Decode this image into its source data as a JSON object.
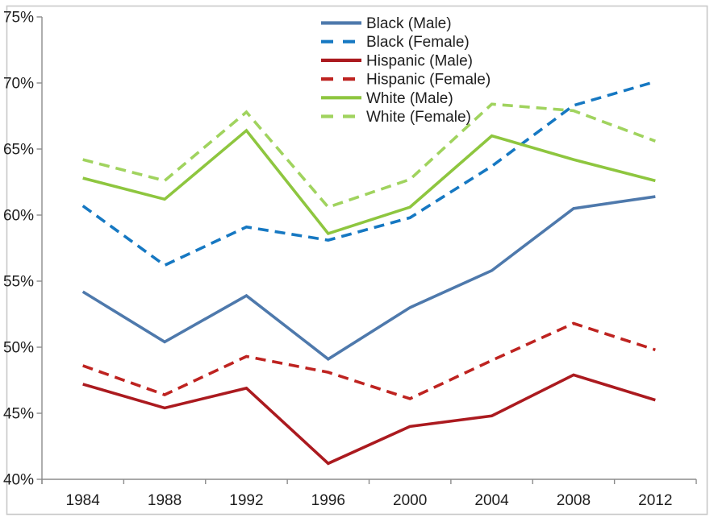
{
  "chart_data": {
    "type": "line",
    "title": "",
    "xlabel": "",
    "ylabel": "",
    "x": [
      "1984",
      "1988",
      "1992",
      "1996",
      "2000",
      "2004",
      "2008",
      "2012"
    ],
    "series": [
      {
        "name": "Black (Male)",
        "color": "#4E79AC",
        "dash": "solid",
        "values": [
          54.2,
          50.4,
          53.9,
          49.1,
          53.0,
          55.8,
          60.5,
          61.4
        ]
      },
      {
        "name": "Black (Female)",
        "color": "#1678C2",
        "dash": "dashed",
        "values": [
          60.7,
          56.2,
          59.1,
          58.1,
          59.8,
          63.7,
          68.3,
          70.1
        ]
      },
      {
        "name": "Hispanic (Male)",
        "color": "#AB1A1F",
        "dash": "solid",
        "values": [
          47.2,
          45.4,
          46.9,
          41.2,
          44.0,
          44.8,
          47.9,
          46.0
        ]
      },
      {
        "name": "Hispanic (Female)",
        "color": "#BE2320",
        "dash": "dashed",
        "values": [
          48.6,
          46.4,
          49.3,
          48.1,
          46.1,
          49.0,
          51.8,
          49.8
        ]
      },
      {
        "name": "White (Male)",
        "color": "#8EC63F",
        "dash": "solid",
        "values": [
          62.8,
          61.2,
          66.4,
          58.6,
          60.6,
          66.0,
          64.2,
          62.6
        ]
      },
      {
        "name": "White (Female)",
        "color": "#A0D35E",
        "dash": "dashed",
        "values": [
          64.2,
          62.6,
          67.8,
          60.6,
          62.7,
          68.4,
          67.9,
          65.6
        ]
      }
    ],
    "ylim": [
      40,
      75
    ],
    "ytick_step": 5,
    "ytick_labels": [
      "40%",
      "45%",
      "50%",
      "55%",
      "60%",
      "65%",
      "70%",
      "75%"
    ],
    "xtick_labels": [
      "1984",
      "1988",
      "1992",
      "1996",
      "2000",
      "2004",
      "2008",
      "2012"
    ],
    "grid": false,
    "legend_position": "top-center",
    "legend_entries": [
      "Black (Male)",
      "Black (Female)",
      "Hispanic (Male)",
      "Hispanic (Female)",
      "White (Male)",
      "White (Female)"
    ]
  },
  "style": {
    "frame_color": "#C9C9C9",
    "axis_color": "#8C8C8C",
    "text_color": "#1E1E1E",
    "background": "#FFFFFF"
  }
}
